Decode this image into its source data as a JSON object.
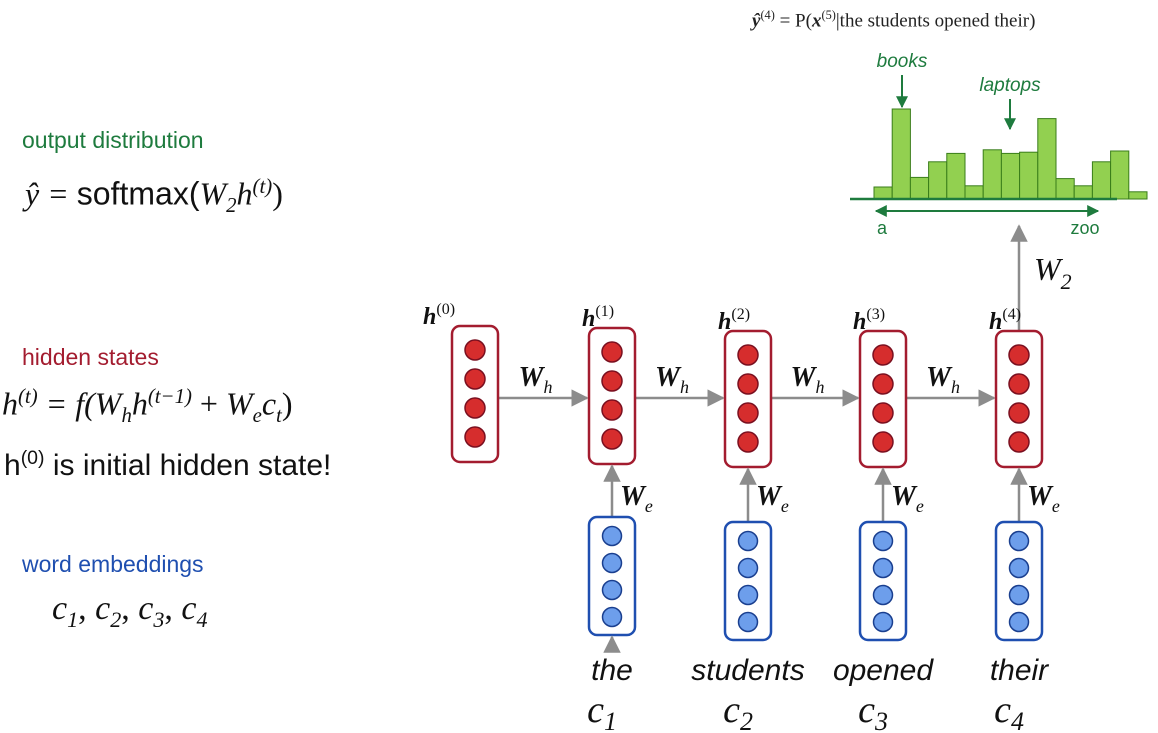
{
  "header": {
    "prob_lhs": "ŷ",
    "prob_lhs_sup": "(4)",
    "prob_eq": "= P(",
    "prob_x": "x",
    "prob_x_sup": "(5)",
    "prob_rest": "|the students opened their)"
  },
  "histogram": {
    "label_books": "books",
    "label_laptops": "laptops",
    "axis_start": "a",
    "axis_end": "zoo",
    "bar_color": "#92d050",
    "bar_stroke": "#3a7d1a",
    "bars": [
      0.1,
      0.75,
      0.18,
      0.31,
      0.38,
      0.11,
      0.41,
      0.38,
      0.39,
      0.67,
      0.17,
      0.11,
      0.31,
      0.4,
      0.06
    ]
  },
  "left_panel": {
    "output_title": "output distribution",
    "output_formula": {
      "lhs": "ŷ = ",
      "fn": "softmax(",
      "w": "W",
      "w_sub": "2",
      "h": "h",
      "h_sup": "(t)",
      "close": ")"
    },
    "hidden_title": "hidden states",
    "hidden_formula": {
      "h": "h",
      "h_sup": "(t)",
      "eq": " = f(",
      "wh": "W",
      "wh_sub": "h",
      "h2": "h",
      "h2_sup": "(t−1)",
      "plus": " + ",
      "we": "W",
      "we_sub": "e",
      "c": "c",
      "c_sub": "t",
      "close": ")"
    },
    "hidden_note_prefix": "h",
    "hidden_note_sup": "(0)",
    "hidden_note_rest": " is initial hidden state!",
    "embed_title": "word embeddings",
    "embed_formula": {
      "c": [
        "c",
        "c",
        "c",
        "c"
      ],
      "subs": [
        "1",
        "2",
        "3",
        "4"
      ],
      "sep": ", "
    }
  },
  "rnn": {
    "hidden_labels": [
      {
        "h": "h",
        "sup": "(0)"
      },
      {
        "h": "h",
        "sup": "(1)"
      },
      {
        "h": "h",
        "sup": "(2)"
      },
      {
        "h": "h",
        "sup": "(3)"
      },
      {
        "h": "h",
        "sup": "(4)"
      }
    ],
    "wh_label": {
      "w": "W",
      "sub": "h"
    },
    "we_label": {
      "w": "W",
      "sub": "e"
    },
    "w2_label": {
      "w": "W",
      "sub": "2"
    },
    "words": [
      "the",
      "students",
      "opened",
      "their"
    ],
    "word_vars": [
      {
        "c": "c",
        "sub": "1"
      },
      {
        "c": "c",
        "sub": "2"
      },
      {
        "c": "c",
        "sub": "3"
      },
      {
        "c": "c",
        "sub": "4"
      }
    ],
    "colors": {
      "hidden_stroke": "#a31c2f",
      "hidden_fill": "#d62d2d",
      "embed_stroke": "#1f4fb0",
      "embed_fill": "#6d9eeb",
      "arrow": "#8c8c8c",
      "axis_green": "#1e7b3e"
    }
  }
}
